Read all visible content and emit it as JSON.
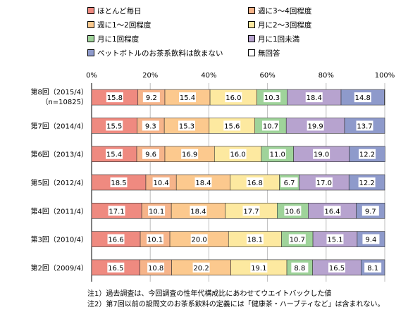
{
  "legend": [
    {
      "label": "ほとんど毎日",
      "color": "#ef8a80"
    },
    {
      "label": "週に3～4回程度",
      "color": "#f6b48a"
    },
    {
      "label": "週に1～2回程度",
      "color": "#fcc98e"
    },
    {
      "label": "月に2～3回程度",
      "color": "#fde9a0"
    },
    {
      "label": "月に1回程度",
      "color": "#9fd39a"
    },
    {
      "label": "月に1回未満",
      "color": "#b7a3cf"
    },
    {
      "label": "ペットボトルのお茶系飲料は飲まない",
      "color": "#8e9acb"
    },
    {
      "label": "無回答",
      "color": "#ffffff"
    }
  ],
  "notes": [
    "注1）過去調査は、今回調査の性年代構成比にあわせてウエイトバックした値",
    "注2）第7回以前の設問文のお茶系飲料の定義には「健康茶・ハーブティなど」は含まれない。"
  ],
  "chart_data": {
    "type": "bar",
    "orientation": "horizontal",
    "stacked": "100%",
    "xlim": [
      0,
      100
    ],
    "xticks": [
      "0%",
      "20%",
      "40%",
      "60%",
      "80%",
      "100%"
    ],
    "grid": true,
    "legend_position": "top",
    "categories": [
      {
        "line1": "第8回（2015/4）",
        "line2": "（n=10825）"
      },
      {
        "line1": "第7回（2014/4）",
        "line2": ""
      },
      {
        "line1": "第6回（2013/4）",
        "line2": ""
      },
      {
        "line1": "第5回（2012/4）",
        "line2": ""
      },
      {
        "line1": "第4回（2011/4）",
        "line2": ""
      },
      {
        "line1": "第3回（2010/4）",
        "line2": ""
      },
      {
        "line1": "第2回（2009/4）",
        "line2": ""
      }
    ],
    "series": [
      {
        "name": "ほとんど毎日",
        "values": [
          15.8,
          15.5,
          15.4,
          18.5,
          17.1,
          16.6,
          16.5
        ]
      },
      {
        "name": "週に3～4回程度",
        "values": [
          9.2,
          9.3,
          9.6,
          10.4,
          10.1,
          10.1,
          10.8
        ]
      },
      {
        "name": "週に1～2回程度",
        "values": [
          15.4,
          15.3,
          16.9,
          18.4,
          18.4,
          20.0,
          20.2
        ]
      },
      {
        "name": "月に2～3回程度",
        "values": [
          16.0,
          15.6,
          16.0,
          16.8,
          17.7,
          18.1,
          19.1
        ]
      },
      {
        "name": "月に1回程度",
        "values": [
          10.3,
          10.7,
          11.0,
          6.7,
          10.6,
          10.7,
          8.8
        ]
      },
      {
        "name": "月に1回未満",
        "values": [
          18.4,
          19.9,
          19.0,
          17.0,
          16.4,
          15.1,
          16.5
        ]
      },
      {
        "name": "ペットボトルのお茶系飲料は飲まない",
        "values": [
          14.8,
          13.7,
          12.2,
          12.2,
          9.7,
          9.4,
          8.1
        ]
      },
      {
        "name": "無回答",
        "values": [
          0.1,
          0.0,
          0.0,
          0.0,
          0.0,
          0.0,
          0.0
        ]
      }
    ]
  }
}
